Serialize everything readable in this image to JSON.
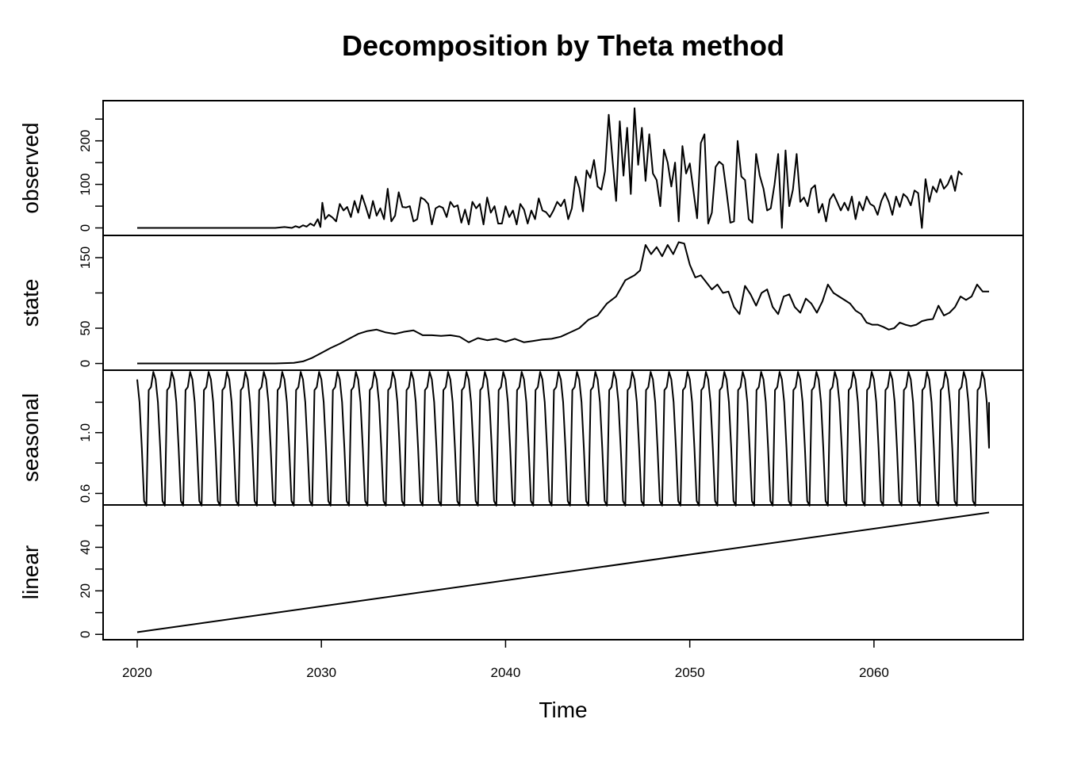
{
  "chart_data": {
    "type": "line",
    "title": "Decomposition by Theta method",
    "xlabel": "Time",
    "frequency": 12,
    "start": 2020,
    "end": 2066.25,
    "xlim": [
      2018.15,
      2068.1
    ],
    "x_ticks": [
      2020,
      2030,
      2040,
      2050,
      2060
    ],
    "x_tick_labels": [
      "2020",
      "2030",
      "2040",
      "2050",
      "2060"
    ],
    "panels": [
      {
        "name": "observed",
        "ylim": [
          -10,
          285
        ],
        "y_ticks": [
          0,
          50,
          100,
          150,
          200,
          250
        ],
        "y_tick_labels": [
          "0",
          "",
          "100",
          "",
          "200",
          ""
        ],
        "series_x": [
          2020,
          2026.25,
          2027.5,
          2028.0,
          2028.4,
          2028.6,
          2028.8,
          2029.0,
          2029.2,
          2029.4,
          2029.6,
          2029.8,
          2029.95,
          2030.05,
          2030.2,
          2030.4,
          2030.6,
          2030.8,
          2031.0,
          2031.2,
          2031.4,
          2031.6,
          2031.8,
          2032.0,
          2032.2,
          2032.4,
          2032.6,
          2032.8,
          2033.0,
          2033.2,
          2033.4,
          2033.6,
          2033.8,
          2034.0,
          2034.2,
          2034.4,
          2034.6,
          2034.8,
          2035.0,
          2035.2,
          2035.4,
          2035.6,
          2035.8,
          2036.0,
          2036.2,
          2036.4,
          2036.6,
          2036.8,
          2037.0,
          2037.2,
          2037.4,
          2037.6,
          2037.8,
          2038.0,
          2038.2,
          2038.4,
          2038.6,
          2038.8,
          2039.0,
          2039.2,
          2039.4,
          2039.6,
          2039.8,
          2040.0,
          2040.2,
          2040.4,
          2040.6,
          2040.8,
          2041.0,
          2041.2,
          2041.4,
          2041.6,
          2041.8,
          2042.0,
          2042.2,
          2042.4,
          2042.6,
          2042.8,
          2043.0,
          2043.2,
          2043.4,
          2043.6,
          2043.8,
          2044.0,
          2044.2,
          2044.4,
          2044.6,
          2044.8,
          2045.0,
          2045.2,
          2045.4,
          2045.6,
          2045.8,
          2046.0,
          2046.2,
          2046.4,
          2046.6,
          2046.8,
          2047.0,
          2047.2,
          2047.4,
          2047.6,
          2047.8,
          2048.0,
          2048.2,
          2048.4,
          2048.6,
          2048.8,
          2049.0,
          2049.2,
          2049.4,
          2049.6,
          2049.8,
          2050.0,
          2050.2,
          2050.4,
          2050.6,
          2050.8,
          2051.0,
          2051.2,
          2051.4,
          2051.6,
          2051.8,
          2052.0,
          2052.2,
          2052.4,
          2052.6,
          2052.8,
          2053.0,
          2053.2,
          2053.4,
          2053.6,
          2053.8,
          2054.0,
          2054.2,
          2054.4,
          2054.6,
          2054.8,
          2055.0,
          2055.2,
          2055.4,
          2055.6,
          2055.8,
          2056.0,
          2056.2,
          2056.4,
          2056.6,
          2056.8,
          2057.0,
          2057.2,
          2057.4,
          2057.6,
          2057.8,
          2058.0,
          2058.2,
          2058.4,
          2058.6,
          2058.8,
          2059.0,
          2059.2,
          2059.4,
          2059.6,
          2059.8,
          2060.0,
          2060.2,
          2060.4,
          2060.6,
          2060.8,
          2061.0,
          2061.2,
          2061.4,
          2061.6,
          2061.8,
          2062.0,
          2062.2,
          2062.4,
          2062.6,
          2062.8,
          2063.0,
          2063.2,
          2063.4,
          2063.6,
          2063.8,
          2064.0,
          2064.2,
          2064.4,
          2064.6,
          2064.8,
          2065.0,
          2065.2,
          2065.4,
          2065.6,
          2065.8,
          2066.0,
          2066.1,
          2066.25
        ],
        "series_y": [
          0,
          0,
          0,
          2,
          0,
          4,
          1,
          6,
          3,
          10,
          5,
          20,
          2,
          58,
          20,
          30,
          24,
          15,
          55,
          40,
          48,
          25,
          62,
          35,
          75,
          50,
          22,
          62,
          28,
          45,
          20,
          90,
          15,
          28,
          82,
          48,
          47,
          50,
          15,
          20,
          70,
          65,
          55,
          8,
          45,
          50,
          46,
          25,
          60,
          48,
          52,
          12,
          42,
          8,
          60,
          45,
          55,
          8,
          70,
          35,
          50,
          10,
          10,
          50,
          25,
          40,
          8,
          55,
          42,
          10,
          40,
          20,
          68,
          40,
          36,
          25,
          40,
          60,
          50,
          65,
          20,
          45,
          118,
          92,
          38,
          132,
          115,
          156,
          95,
          88,
          130,
          260,
          160,
          62,
          245,
          120,
          230,
          78,
          275,
          145,
          230,
          108,
          215,
          125,
          110,
          50,
          180,
          150,
          95,
          150,
          15,
          188,
          125,
          148,
          85,
          22,
          195,
          215,
          10,
          35,
          140,
          152,
          145,
          82,
          12,
          15,
          200,
          118,
          110,
          20,
          12,
          170,
          120,
          90,
          40,
          45,
          100,
          170,
          0,
          178,
          50,
          88,
          170,
          60,
          70,
          50,
          90,
          98,
          35,
          55,
          15,
          65,
          78,
          60,
          40,
          58,
          40,
          72,
          20,
          60,
          40,
          72,
          55,
          50,
          30,
          62,
          80,
          60,
          30,
          72,
          48,
          78,
          70,
          52,
          86,
          80,
          0,
          112,
          60,
          95,
          82,
          112,
          90,
          100,
          120,
          85,
          130,
          122
        ],
        "comment": "2020–2026.25 flat at 0; series_x/series_y carry the sampled monthly values"
      },
      {
        "name": "state",
        "ylim": [
          -5,
          177
        ],
        "y_ticks": [
          0,
          50,
          100,
          150
        ],
        "y_tick_labels": [
          "0",
          "50",
          "",
          "150"
        ],
        "series_x": [
          2020,
          2026.25,
          2027.5,
          2028.0,
          2028.5,
          2029.0,
          2029.5,
          2030.0,
          2030.5,
          2031.0,
          2031.5,
          2032.0,
          2032.5,
          2033.0,
          2033.5,
          2034.0,
          2034.5,
          2035.0,
          2035.5,
          2036.0,
          2036.5,
          2037.0,
          2037.5,
          2038.0,
          2038.5,
          2039.0,
          2039.5,
          2040.0,
          2040.5,
          2041.0,
          2041.5,
          2042.0,
          2042.5,
          2043.0,
          2043.5,
          2044.0,
          2044.5,
          2045.0,
          2045.5,
          2046.0,
          2046.5,
          2047.0,
          2047.3,
          2047.6,
          2047.9,
          2048.2,
          2048.5,
          2048.8,
          2049.1,
          2049.4,
          2049.7,
          2050.0,
          2050.3,
          2050.6,
          2050.9,
          2051.2,
          2051.5,
          2051.8,
          2052.1,
          2052.4,
          2052.7,
          2053.0,
          2053.3,
          2053.6,
          2053.9,
          2054.2,
          2054.5,
          2054.8,
          2055.1,
          2055.4,
          2055.7,
          2056.0,
          2056.3,
          2056.6,
          2056.9,
          2057.2,
          2057.5,
          2057.8,
          2058.1,
          2058.4,
          2058.7,
          2059.0,
          2059.3,
          2059.6,
          2059.9,
          2060.2,
          2060.5,
          2060.8,
          2061.1,
          2061.4,
          2061.7,
          2062.0,
          2062.3,
          2062.6,
          2062.9,
          2063.2,
          2063.5,
          2063.8,
          2064.1,
          2064.4,
          2064.7,
          2065.0,
          2065.3,
          2065.6,
          2065.9,
          2066.25
        ],
        "series_y": [
          0,
          0,
          0,
          0.5,
          1,
          3,
          8,
          15,
          22,
          28,
          35,
          42,
          46,
          48,
          44,
          42,
          45,
          47,
          40,
          40,
          39,
          40,
          38,
          30,
          36,
          33,
          35,
          31,
          35,
          30,
          32,
          34,
          35,
          38,
          44,
          50,
          62,
          68,
          85,
          95,
          118,
          125,
          132,
          168,
          155,
          165,
          152,
          168,
          155,
          172,
          170,
          140,
          122,
          125,
          115,
          105,
          112,
          100,
          102,
          80,
          70,
          110,
          98,
          82,
          100,
          105,
          80,
          70,
          95,
          98,
          80,
          72,
          92,
          85,
          72,
          88,
          112,
          100,
          95,
          90,
          85,
          75,
          70,
          58,
          55,
          55,
          52,
          48,
          50,
          58,
          55,
          53,
          55,
          60,
          62,
          63,
          82,
          68,
          72,
          80,
          95,
          90,
          95,
          112,
          102,
          102
        ]
      },
      {
        "name": "seasonal",
        "ylim": [
          0.545,
          1.39
        ],
        "y_ticks": [
          0.6,
          0.8,
          1.0,
          1.2
        ],
        "y_tick_labels": [
          "0.6",
          "",
          "1.0",
          ""
        ],
        "cycle_values": [
          1.35,
          1.2,
          0.9,
          0.55,
          0.52,
          1.28,
          1.3,
          1.4
        ],
        "comment": "repeating seasonal factor pattern over each year, 2020–2066",
        "end_value": 1.2
      },
      {
        "name": "linear",
        "ylim": [
          -1,
          58
        ],
        "y_ticks": [
          0,
          10,
          20,
          30,
          40,
          50
        ],
        "y_tick_labels": [
          "0",
          "",
          "20",
          "",
          "40",
          ""
        ],
        "series_x": [
          2020,
          2066.25
        ],
        "series_y": [
          1,
          56
        ]
      }
    ]
  }
}
